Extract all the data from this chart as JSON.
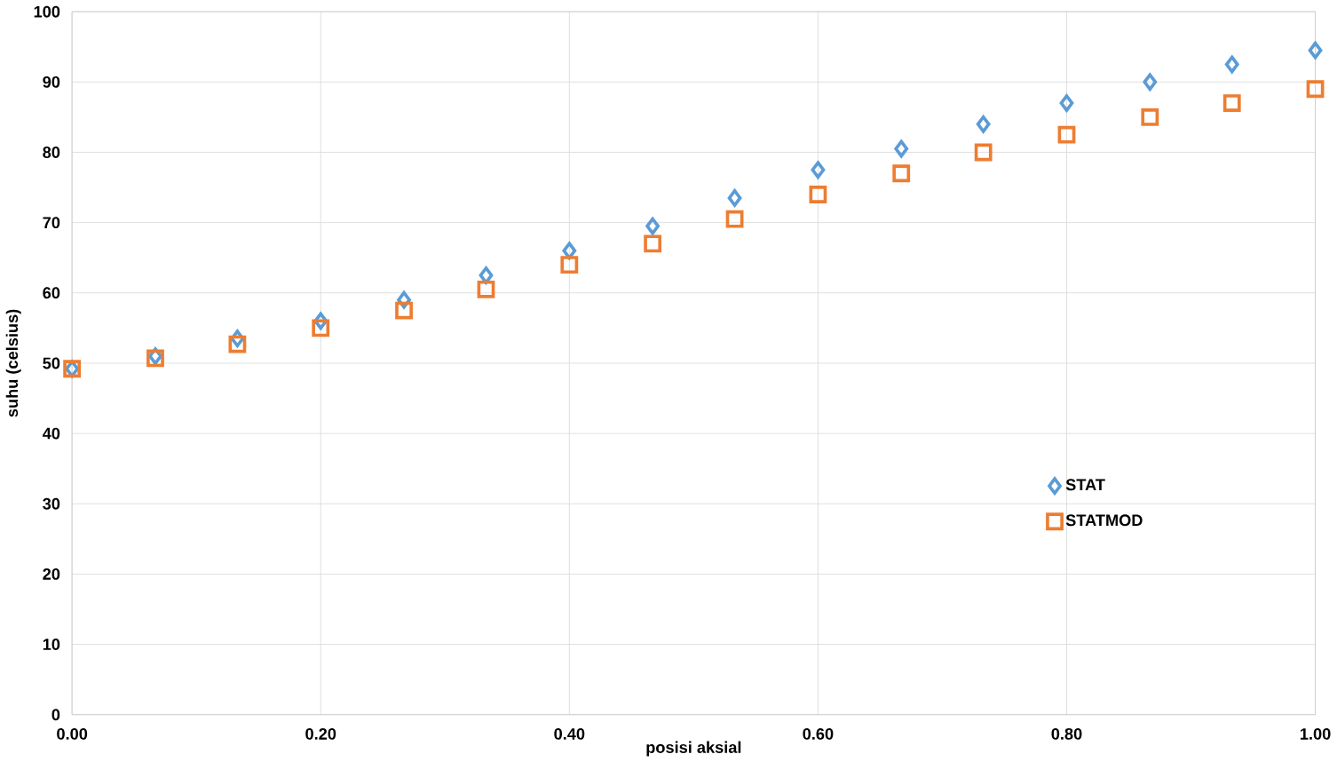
{
  "chart_data": {
    "type": "scatter",
    "xlabel": "posisi aksial",
    "ylabel": "suhu (celsius)",
    "xlim": [
      0,
      1
    ],
    "ylim": [
      0,
      100
    ],
    "xticks": [
      {
        "value": 0,
        "label": "0.00"
      },
      {
        "value": 0.2,
        "label": "0.20"
      },
      {
        "value": 0.4,
        "label": "0.40"
      },
      {
        "value": 0.6,
        "label": "0.60"
      },
      {
        "value": 0.8,
        "label": "0.80"
      },
      {
        "value": 1,
        "label": "1.00"
      }
    ],
    "yticks": [
      0,
      10,
      20,
      30,
      40,
      50,
      60,
      70,
      80,
      90,
      100
    ],
    "grid": true,
    "legend": "right",
    "x": [
      0,
      0.067,
      0.133,
      0.2,
      0.267,
      0.333,
      0.4,
      0.467,
      0.533,
      0.6,
      0.667,
      0.733,
      0.8,
      0.867,
      0.933,
      1
    ],
    "series": [
      {
        "name": "STAT",
        "color": "#5b9bd5",
        "marker": "diamond",
        "values": [
          49.2,
          51,
          53.5,
          56,
          59,
          62.5,
          66,
          69.5,
          73.5,
          77.5,
          80.5,
          84,
          87,
          90,
          92.5,
          94.5
        ]
      },
      {
        "name": "STATMOD",
        "color": "#ed7d31",
        "marker": "square",
        "values": [
          49.2,
          50.7,
          52.7,
          55,
          57.5,
          60.5,
          64,
          67,
          70.5,
          74,
          77,
          80,
          82.5,
          85,
          87,
          89
        ]
      }
    ]
  }
}
